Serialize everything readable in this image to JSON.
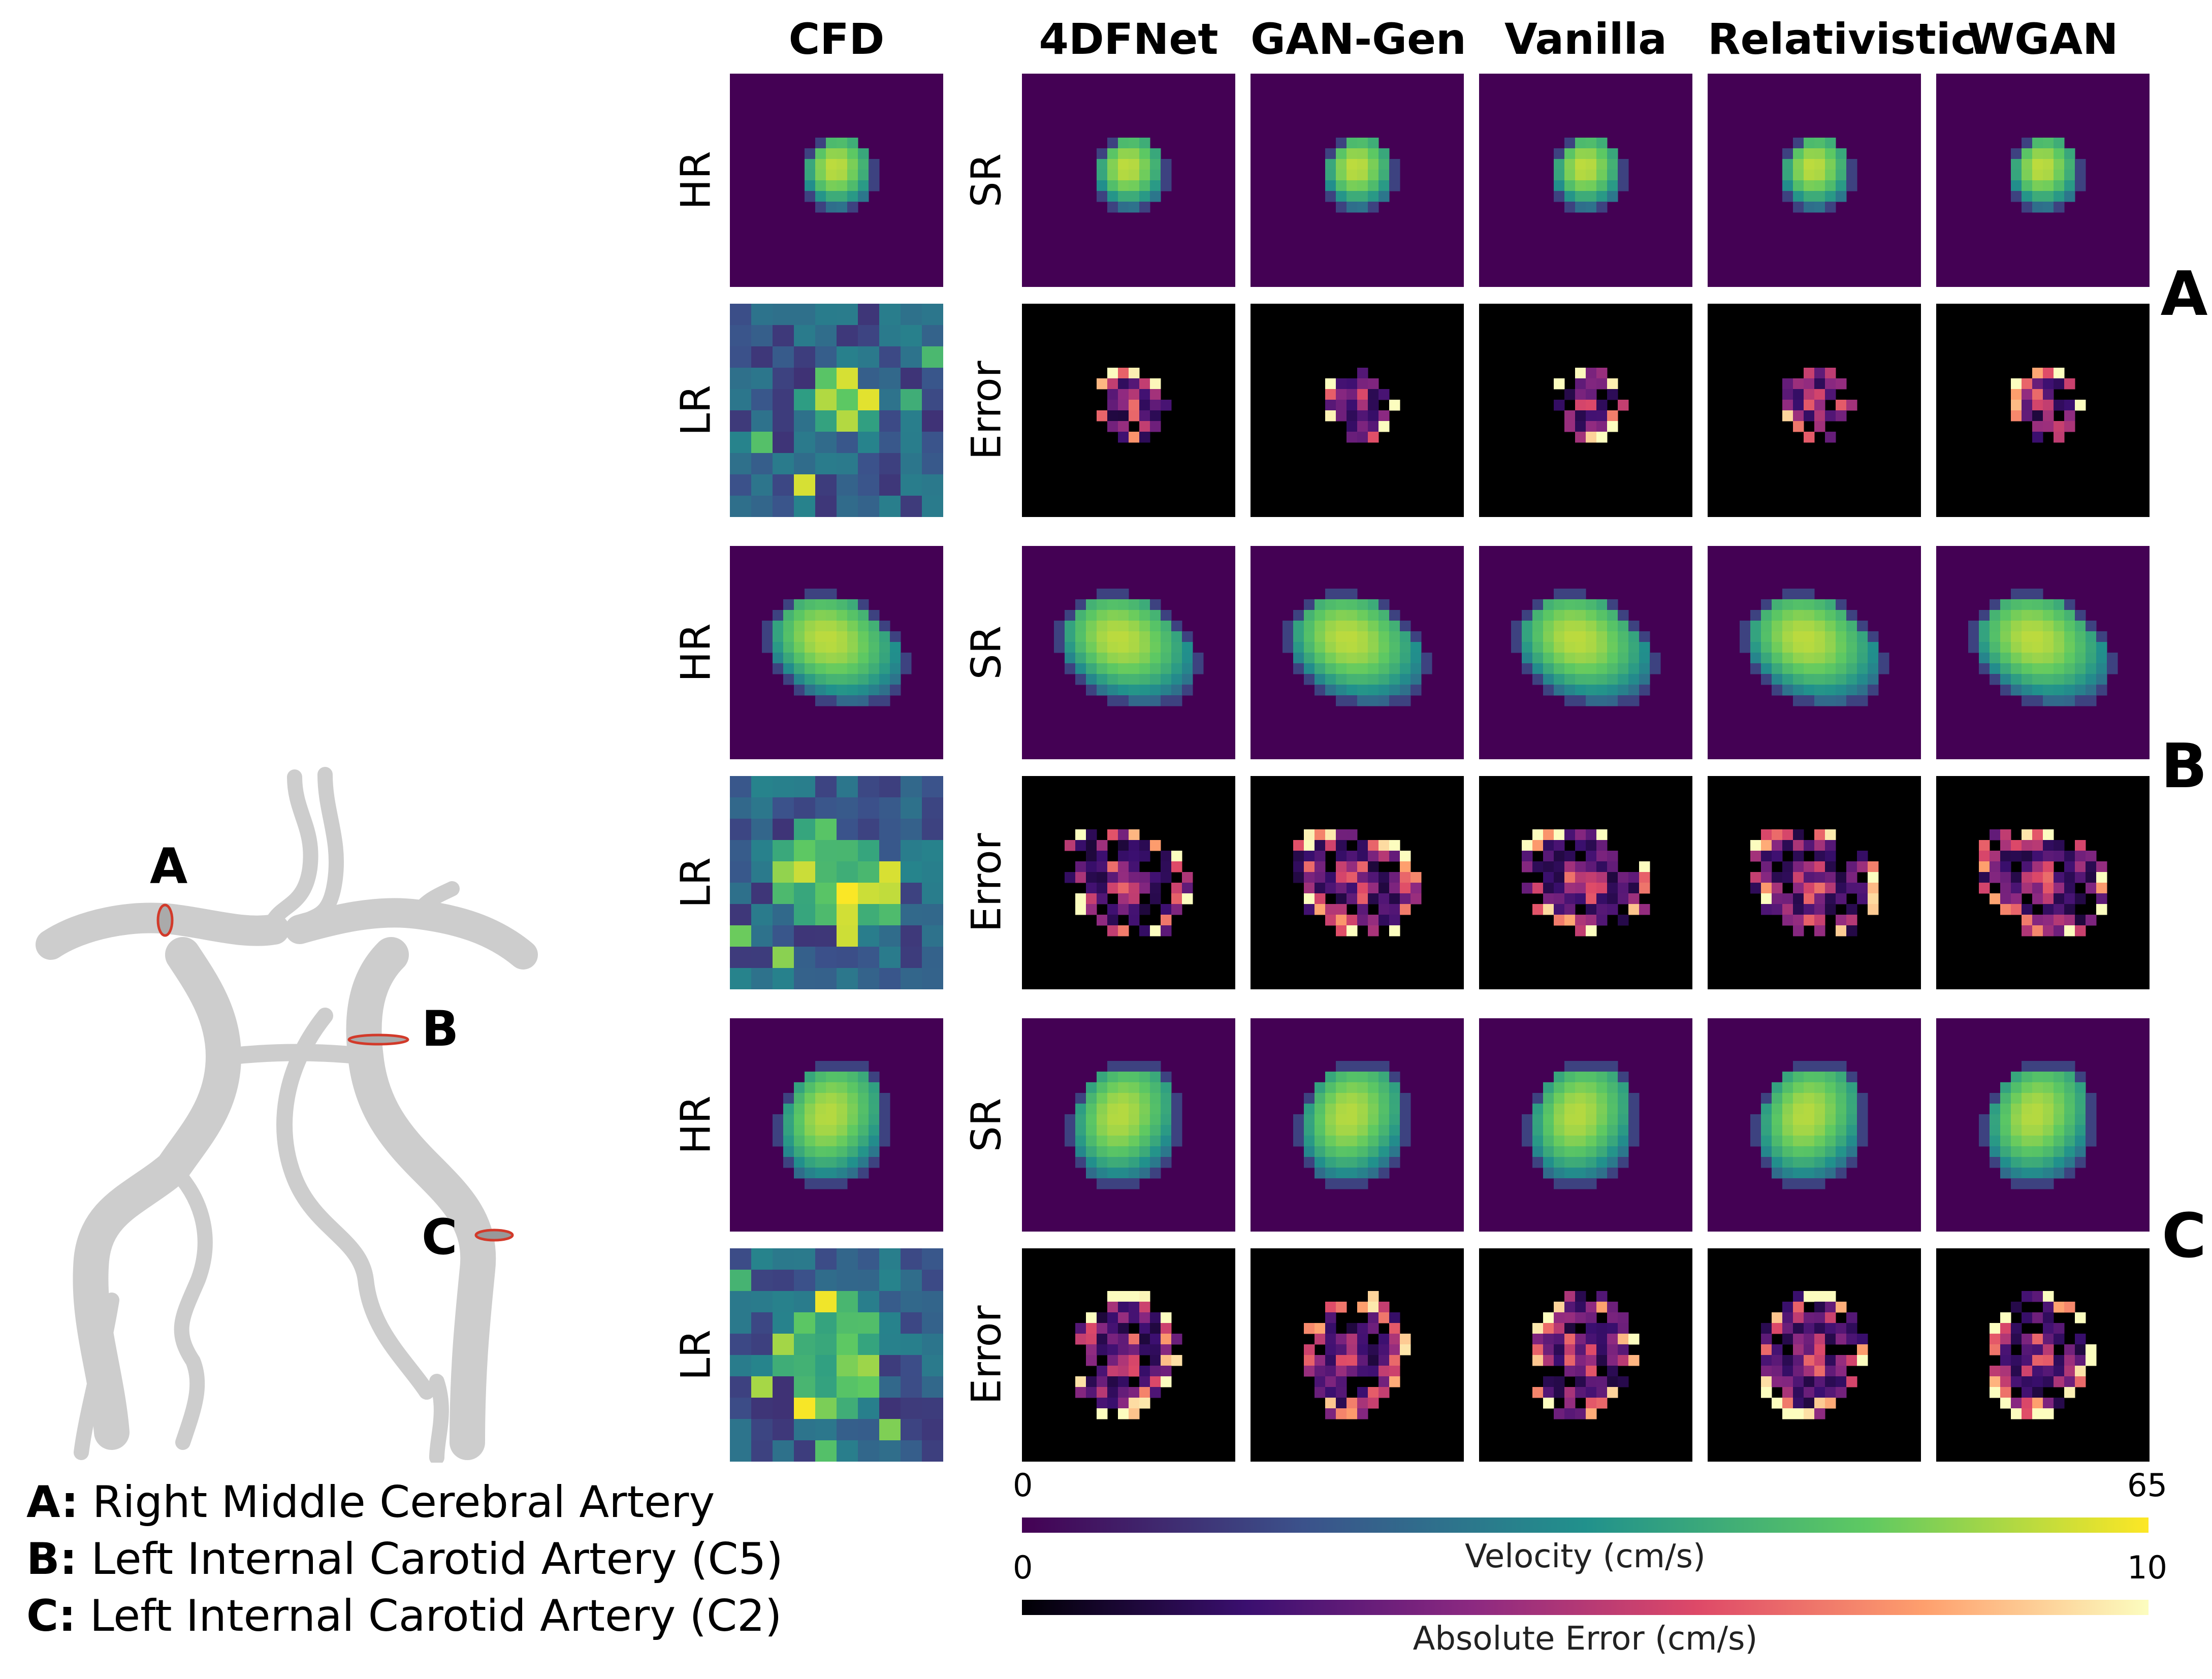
{
  "columns": {
    "cfd": "CFD",
    "models": [
      "4DFNet",
      "GAN-Gen",
      "Vanilla",
      "Relativistic",
      "WGAN"
    ]
  },
  "row_labels": {
    "hr": "HR",
    "lr": "LR",
    "sr": "SR",
    "error": "Error"
  },
  "regions": [
    "A",
    "B",
    "C"
  ],
  "velocity_colorbar": {
    "min": "0",
    "max": "65",
    "label": "Velocity (cm/s)",
    "colormap": [
      "#440154",
      "#3b528b",
      "#21918c",
      "#5ec962",
      "#fde725"
    ]
  },
  "error_colorbar": {
    "min": "0",
    "max": "10",
    "label": "Absolute Error (cm/s)",
    "colormap": [
      "#000004",
      "#3b0f70",
      "#8c2981",
      "#de4968",
      "#fe9f6d",
      "#fcfdbf"
    ]
  },
  "vessel_markers": [
    "A",
    "B",
    "C"
  ],
  "legend": [
    {
      "key": "A:",
      "text": " Right Middle Cerebral Artery"
    },
    {
      "key": "B:",
      "text": " Left Internal Carotid Artery (C5)"
    },
    {
      "key": "C:",
      "text": " Left Internal Carotid Artery (C2)"
    }
  ]
}
